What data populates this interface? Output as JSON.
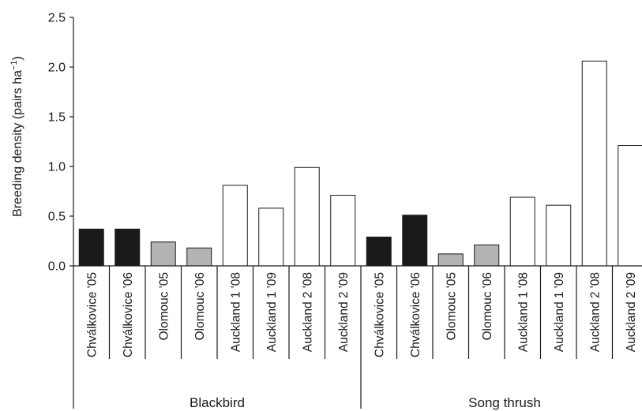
{
  "chart_data": {
    "type": "bar",
    "title": "",
    "xlabel": "",
    "ylabel": "Breeding density (pairs ha",
    "ylabel_superscript": "−1",
    "ylabel_close": ")",
    "ylim": [
      0,
      2.5
    ],
    "yticks": [
      "0.0",
      "0.5",
      "1.0",
      "1.5",
      "2.0",
      "2.5"
    ],
    "grid": false,
    "legend": "none",
    "colors": {
      "Chválkovice": "#1a1a1a",
      "Olomouc": "#b3b3b3",
      "Auckland": "#ffffff"
    },
    "groups": [
      {
        "name": "Blackbird",
        "categories": [
          "Chválkovice '05",
          "Chválkovice '06",
          "Olomouc '05",
          "Olomouc '06",
          "Auckland 1 '08",
          "Auckland 1 '09",
          "Auckland 2 '08",
          "Auckland 2 '09"
        ],
        "values": [
          0.37,
          0.37,
          0.24,
          0.18,
          0.81,
          0.58,
          0.99,
          0.71
        ],
        "sites": [
          "Chválkovice",
          "Chválkovice",
          "Olomouc",
          "Olomouc",
          "Auckland",
          "Auckland",
          "Auckland",
          "Auckland"
        ]
      },
      {
        "name": "Song thrush",
        "categories": [
          "Chválkovice '05",
          "Chválkovice '06",
          "Olomouc '05",
          "Olomouc '06",
          "Auckland 1 '08",
          "Auckland 1 '09",
          "Auckland 2 '08",
          "Auckland 2 '09"
        ],
        "values": [
          0.29,
          0.51,
          0.12,
          0.21,
          0.69,
          0.61,
          2.06,
          1.21
        ],
        "sites": [
          "Chválkovice",
          "Chválkovice",
          "Olomouc",
          "Olomouc",
          "Auckland",
          "Auckland",
          "Auckland",
          "Auckland"
        ]
      }
    ]
  }
}
